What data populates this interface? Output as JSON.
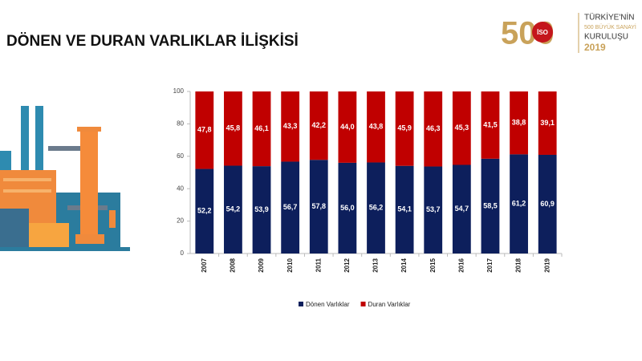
{
  "slide_title": "DÖNEN VE DURAN VARLIKLAR İLİŞKİSİ",
  "logo": {
    "number": "500",
    "badge": "İSO",
    "line1": "TÜRKİYE'NİN",
    "line2": "500 BÜYÜK SANAYİ",
    "line3": "KURULUŞU",
    "year": "2019"
  },
  "chart_data": {
    "type": "stacked_bar",
    "categories": [
      "2007",
      "2008",
      "2009",
      "2010",
      "2011",
      "2012",
      "2013",
      "2014",
      "2015",
      "2016",
      "2017",
      "2018",
      "2019"
    ],
    "series": [
      {
        "name": "Dönen Varlıklar",
        "color": "#0d1f5c",
        "values": [
          52.2,
          54.2,
          53.9,
          56.7,
          57.8,
          56.0,
          56.2,
          54.1,
          53.7,
          54.7,
          58.5,
          61.2,
          60.9
        ],
        "value_labels": [
          "52,2",
          "54,2",
          "53,9",
          "56,7",
          "57,8",
          "56,0",
          "56,2",
          "54,1",
          "53,7",
          "54,7",
          "58,5",
          "61,2",
          "60,9"
        ]
      },
      {
        "name": "Duran Varlıklar",
        "color": "#c00000",
        "values": [
          47.8,
          45.8,
          46.1,
          43.3,
          42.2,
          44.0,
          43.8,
          45.9,
          46.3,
          45.3,
          41.5,
          38.8,
          39.1
        ],
        "value_labels": [
          "47,8",
          "45,8",
          "46,1",
          "43,3",
          "42,2",
          "44,0",
          "43,8",
          "45,9",
          "46,3",
          "45,3",
          "41,5",
          "38,8",
          "39,1"
        ]
      }
    ],
    "ylim": [
      0,
      100
    ],
    "yticks": [
      0,
      20,
      40,
      60,
      80,
      100
    ],
    "legend": "bottom"
  }
}
